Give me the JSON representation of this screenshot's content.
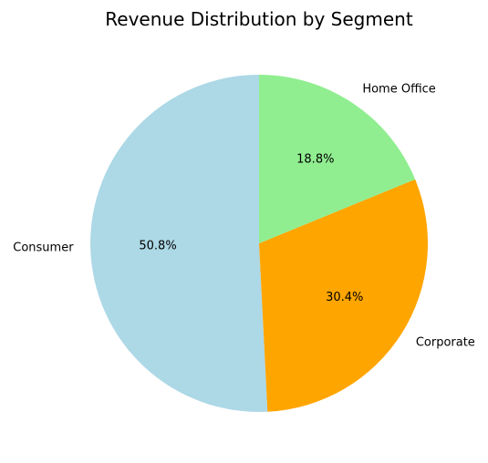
{
  "chart_data": {
    "type": "pie",
    "title": "Revenue Distribution by Segment",
    "start_angle_deg": 90,
    "direction": "counterclockwise",
    "slices": [
      {
        "label": "Consumer",
        "value": 50.8,
        "pct_label": "50.8%",
        "color": "#add8e6"
      },
      {
        "label": "Corporate",
        "value": 30.4,
        "pct_label": "30.4%",
        "color": "#ffa500"
      },
      {
        "label": "Home Office",
        "value": 18.8,
        "pct_label": "18.8%",
        "color": "#90ee90"
      }
    ]
  }
}
